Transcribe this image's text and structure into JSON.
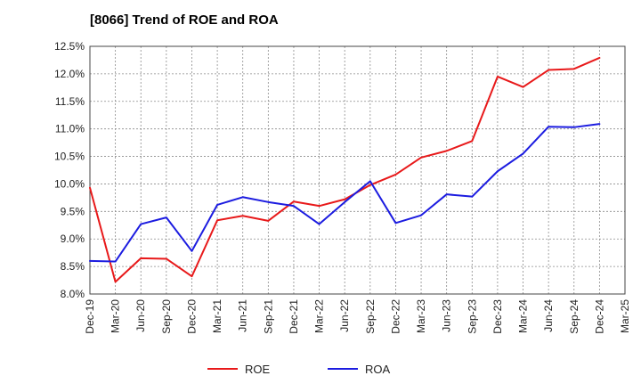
{
  "chart_data": {
    "type": "line",
    "title": "[8066]  Trend of ROE and ROA",
    "xlabel": "",
    "ylabel": "",
    "categories": [
      "Dec-19",
      "Mar-20",
      "Jun-20",
      "Sep-20",
      "Dec-20",
      "Mar-21",
      "Jun-21",
      "Sep-21",
      "Dec-21",
      "Mar-22",
      "Jun-22",
      "Sep-22",
      "Dec-22",
      "Mar-23",
      "Jun-23",
      "Sep-23",
      "Dec-23",
      "Mar-24",
      "Jun-24",
      "Sep-24",
      "Dec-24",
      "Mar-25"
    ],
    "ylim": [
      8.0,
      12.5
    ],
    "yticks": [
      8.0,
      8.5,
      9.0,
      9.5,
      10.0,
      10.5,
      11.0,
      11.5,
      12.0,
      12.5
    ],
    "ytick_labels": [
      "8.0%",
      "8.5%",
      "9.0%",
      "9.5%",
      "10.0%",
      "10.5%",
      "11.0%",
      "11.5%",
      "12.0%",
      "12.5%"
    ],
    "grid": true,
    "legend_position": "bottom-center",
    "series": [
      {
        "name": "ROE",
        "color": "#e8191a",
        "values": [
          9.93,
          8.22,
          8.65,
          8.64,
          8.32,
          9.34,
          9.42,
          9.33,
          9.68,
          9.6,
          9.72,
          9.98,
          10.17,
          10.48,
          10.6,
          10.78,
          11.95,
          11.76,
          12.07,
          12.09,
          12.29,
          null
        ]
      },
      {
        "name": "ROA",
        "color": "#1c1ce0",
        "values": [
          8.6,
          8.59,
          9.27,
          9.39,
          8.78,
          9.62,
          9.76,
          9.67,
          9.6,
          9.27,
          9.67,
          10.05,
          9.29,
          9.43,
          9.81,
          9.77,
          10.23,
          10.55,
          11.04,
          11.03,
          11.09,
          null
        ]
      }
    ]
  }
}
